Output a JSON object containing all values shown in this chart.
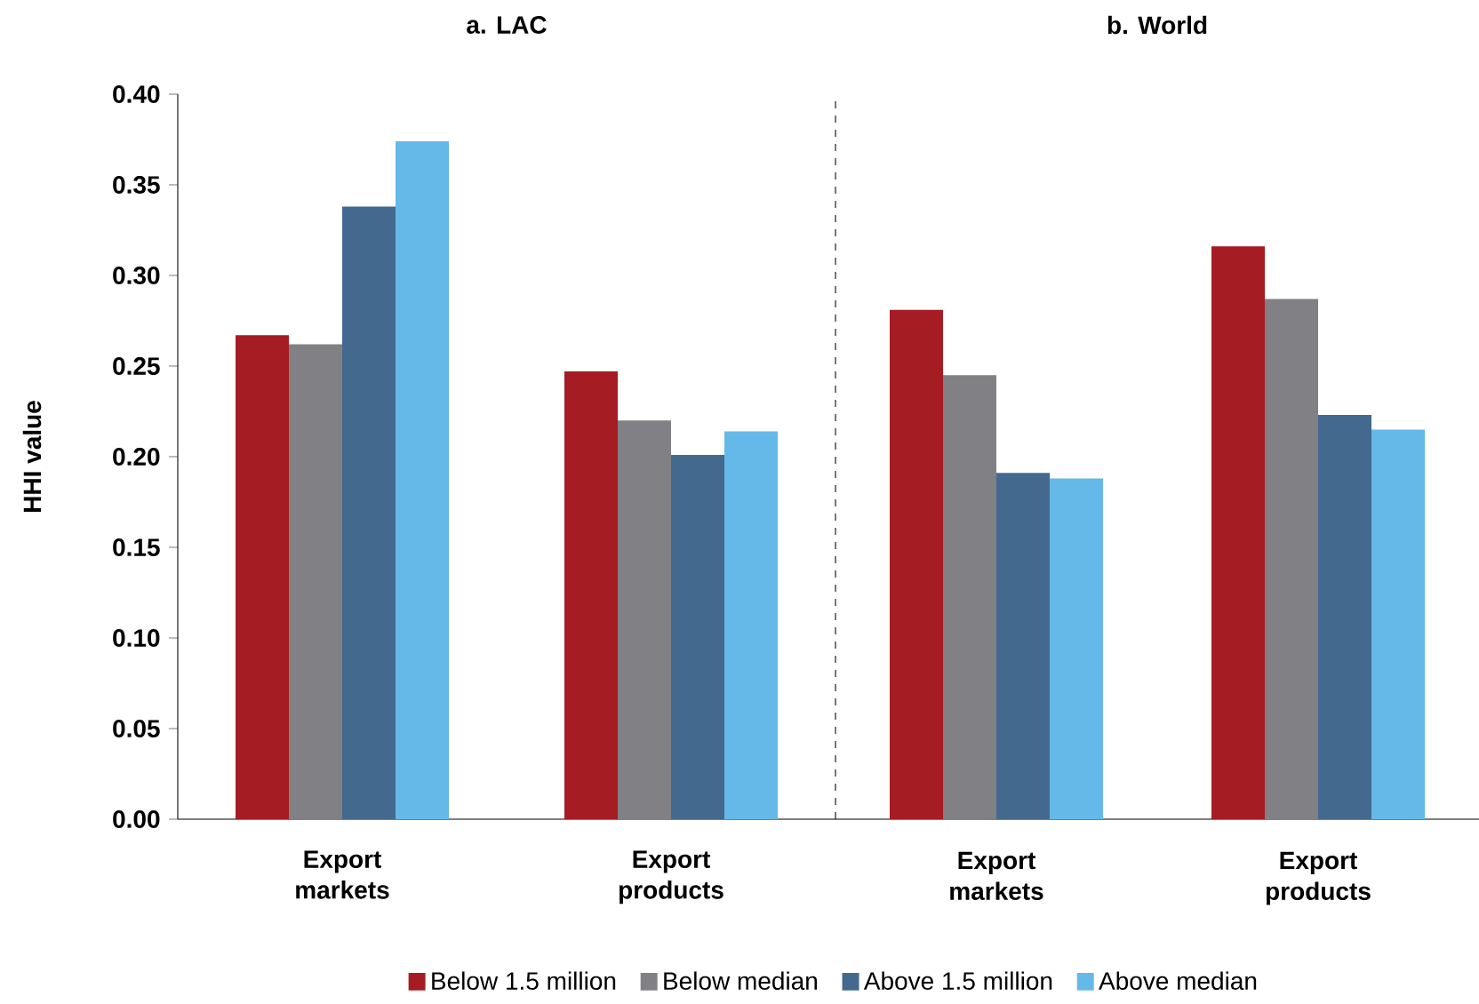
{
  "chart_data": [
    {
      "type": "bar",
      "title": "a. LAC",
      "ylabel": "HHI value",
      "categories": [
        "Export markets",
        "Export products"
      ],
      "series": [
        {
          "name": "Below 1.5 million",
          "color": "#a51c22",
          "values": [
            0.267,
            0.247
          ]
        },
        {
          "name": "Below median",
          "color": "#808085",
          "values": [
            0.262,
            0.22
          ]
        },
        {
          "name": "Above 1.5 million",
          "color": "#44698f",
          "values": [
            0.338,
            0.201
          ]
        },
        {
          "name": "Above median",
          "color": "#65b9e8",
          "values": [
            0.374,
            0.214
          ]
        }
      ],
      "ylim": [
        0,
        0.4
      ],
      "yticks": [
        {
          "value": 0,
          "label": "0.00"
        },
        {
          "value": 0.05,
          "label": "0.05"
        },
        {
          "value": 0.1,
          "label": "0.10"
        },
        {
          "value": 0.15,
          "label": "0.15"
        },
        {
          "value": 0.2,
          "label": "0.20"
        },
        {
          "value": 0.25,
          "label": "0.25"
        },
        {
          "value": 0.3,
          "label": "0.30"
        },
        {
          "value": 0.35,
          "label": "0.35"
        },
        {
          "value": 0.4,
          "label": "0.40"
        }
      ],
      "legend": "bottom"
    },
    {
      "type": "bar",
      "title": "b. World",
      "categories": [
        "Export markets",
        "Export products"
      ],
      "series": [
        {
          "color": "#a51c22",
          "values": [
            0.281,
            0.316
          ]
        },
        {
          "color": "#808085",
          "values": [
            0.245,
            0.287
          ]
        },
        {
          "color": "#44698f",
          "values": [
            0.191,
            0.223
          ]
        },
        {
          "color": "#65b9e8",
          "values": [
            0.188,
            0.215
          ]
        }
      ],
      "ylim": [
        0,
        0.4
      ],
      "tick_labels": "x"
    }
  ]
}
